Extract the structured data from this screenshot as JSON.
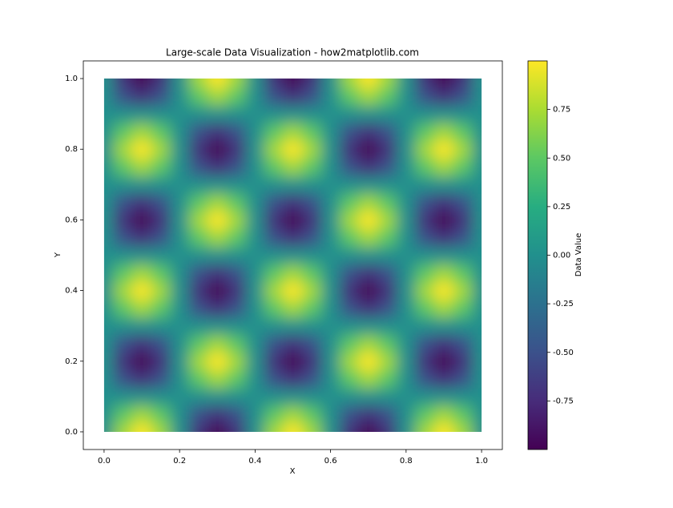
{
  "chart_data": {
    "type": "heatmap",
    "title": "Large-scale Data Visualization - how2matplotlib.com",
    "xlabel": "X",
    "ylabel": "Y",
    "colorbar_label": "Data Value",
    "x": [
      0,
      0.05,
      0.1,
      0.15,
      0.2,
      0.25,
      0.3,
      0.35,
      0.4,
      0.45,
      0.5,
      0.55,
      0.6,
      0.65,
      0.7,
      0.75,
      0.8,
      0.85,
      0.9,
      0.95,
      1
    ],
    "y": [
      0,
      0.05,
      0.1,
      0.15,
      0.2,
      0.25,
      0.3,
      0.35,
      0.4,
      0.45,
      0.5,
      0.55,
      0.6,
      0.65,
      0.7,
      0.75,
      0.8,
      0.85,
      0.9,
      0.95,
      1
    ],
    "z": [
      [
        0,
        0.71,
        1,
        0.71,
        0,
        -0.71,
        -1,
        -0.71,
        0,
        0.71,
        1,
        0.71,
        0,
        -0.71,
        -1,
        -0.71,
        0,
        0.71,
        1,
        0.71,
        0
      ],
      [
        0,
        0.5,
        0.71,
        0.5,
        0,
        -0.5,
        -0.71,
        -0.5,
        0,
        0.5,
        0.71,
        0.5,
        0,
        -0.5,
        -0.71,
        -0.5,
        0,
        0.5,
        0.71,
        0.5,
        0
      ],
      [
        0,
        0,
        0,
        0,
        0,
        0,
        0,
        0,
        0,
        0,
        0,
        0,
        0,
        0,
        0,
        0,
        0,
        0,
        0,
        0,
        0
      ],
      [
        0,
        -0.5,
        -0.71,
        -0.5,
        0,
        0.5,
        0.71,
        0.5,
        0,
        -0.5,
        -0.71,
        -0.5,
        0,
        0.5,
        0.71,
        0.5,
        0,
        -0.5,
        -0.71,
        -0.5,
        0
      ],
      [
        0,
        -0.71,
        -1,
        -0.71,
        0,
        0.71,
        1,
        0.71,
        0,
        -0.71,
        -1,
        -0.71,
        0,
        0.71,
        1,
        0.71,
        0,
        -0.71,
        -1,
        -0.71,
        0
      ],
      [
        0,
        -0.5,
        -0.71,
        -0.5,
        0,
        0.5,
        0.71,
        0.5,
        0,
        -0.5,
        -0.71,
        -0.5,
        0,
        0.5,
        0.71,
        0.5,
        0,
        -0.5,
        -0.71,
        -0.5,
        0
      ],
      [
        0,
        0,
        0,
        0,
        0,
        0,
        0,
        0,
        0,
        0,
        0,
        0,
        0,
        0,
        0,
        0,
        0,
        0,
        0,
        0,
        0
      ],
      [
        0,
        0.5,
        0.71,
        0.5,
        0,
        -0.5,
        -0.71,
        -0.5,
        0,
        0.5,
        0.71,
        0.5,
        0,
        -0.5,
        -0.71,
        -0.5,
        0,
        0.5,
        0.71,
        0.5,
        0
      ],
      [
        0,
        0.71,
        1,
        0.71,
        0,
        -0.71,
        -1,
        -0.71,
        0,
        0.71,
        1,
        0.71,
        0,
        -0.71,
        -1,
        -0.71,
        0,
        0.71,
        1,
        0.71,
        0
      ],
      [
        0,
        0.5,
        0.71,
        0.5,
        0,
        -0.5,
        -0.71,
        -0.5,
        0,
        0.5,
        0.71,
        0.5,
        0,
        -0.5,
        -0.71,
        -0.5,
        0,
        0.5,
        0.71,
        0.5,
        0
      ],
      [
        0,
        0,
        0,
        0,
        0,
        0,
        0,
        0,
        0,
        0,
        0,
        0,
        0,
        0,
        0,
        0,
        0,
        0,
        0,
        0,
        0
      ],
      [
        0,
        -0.5,
        -0.71,
        -0.5,
        0,
        0.5,
        0.71,
        0.5,
        0,
        -0.5,
        -0.71,
        -0.5,
        0,
        0.5,
        0.71,
        0.5,
        0,
        -0.5,
        -0.71,
        -0.5,
        0
      ],
      [
        0,
        -0.71,
        -1,
        -0.71,
        0,
        0.71,
        1,
        0.71,
        0,
        -0.71,
        -1,
        -0.71,
        0,
        0.71,
        1,
        0.71,
        0,
        -0.71,
        -1,
        -0.71,
        0
      ],
      [
        0,
        -0.5,
        -0.71,
        -0.5,
        0,
        0.5,
        0.71,
        0.5,
        0,
        -0.5,
        -0.71,
        -0.5,
        0,
        0.5,
        0.71,
        0.5,
        0,
        -0.5,
        -0.71,
        -0.5,
        0
      ],
      [
        0,
        0,
        0,
        0,
        0,
        0,
        0,
        0,
        0,
        0,
        0,
        0,
        0,
        0,
        0,
        0,
        0,
        0,
        0,
        0,
        0
      ],
      [
        0,
        0.5,
        0.71,
        0.5,
        0,
        -0.5,
        -0.71,
        -0.5,
        0,
        0.5,
        0.71,
        0.5,
        0,
        -0.5,
        -0.71,
        -0.5,
        0,
        0.5,
        0.71,
        0.5,
        0
      ],
      [
        0,
        0.71,
        1,
        0.71,
        0,
        -0.71,
        -1,
        -0.71,
        0,
        0.71,
        1,
        0.71,
        0,
        -0.71,
        -1,
        -0.71,
        0,
        0.71,
        1,
        0.71,
        0
      ],
      [
        0,
        0.5,
        0.71,
        0.5,
        0,
        -0.5,
        -0.71,
        -0.5,
        0,
        0.5,
        0.71,
        0.5,
        0,
        -0.5,
        -0.71,
        -0.5,
        0,
        0.5,
        0.71,
        0.5,
        0
      ],
      [
        0,
        0,
        0,
        0,
        0,
        0,
        0,
        0,
        0,
        0,
        0,
        0,
        0,
        0,
        0,
        0,
        0,
        0,
        0,
        0,
        0
      ],
      [
        0,
        -0.5,
        -0.71,
        -0.5,
        0,
        0.5,
        0.71,
        0.5,
        0,
        -0.5,
        -0.71,
        -0.5,
        0,
        0.5,
        0.71,
        0.5,
        0,
        -0.5,
        -0.71,
        -0.5,
        0
      ],
      [
        0,
        -0.71,
        -1,
        -0.71,
        0,
        0.71,
        1,
        0.71,
        0,
        -0.71,
        -1,
        -0.71,
        0,
        0.71,
        1,
        0.71,
        0,
        -0.71,
        -1,
        -0.71,
        0
      ]
    ],
    "colorscale": [
      "#440154",
      "#472c7a",
      "#3b518b",
      "#2c718e",
      "#21908d",
      "#27ad81",
      "#5cc863",
      "#aadc32",
      "#fde725"
    ],
    "clim": [
      -1,
      1
    ],
    "xlim": [
      -0.055,
      1.055
    ],
    "ylim": [
      -0.05,
      1.05
    ],
    "xticks": [
      {
        "value": 0,
        "label": "0.0"
      },
      0.2,
      0.4,
      0.6,
      0.8,
      {
        "value": 1,
        "label": "1.0"
      }
    ],
    "yticks": [
      {
        "value": 0,
        "label": "0.0"
      },
      0.2,
      0.4,
      0.6,
      0.8,
      {
        "value": 1,
        "label": "1.0"
      }
    ],
    "cticks": [
      {
        "value": -0.75,
        "label": "-0.75"
      },
      {
        "value": -0.5,
        "label": "-0.50"
      },
      {
        "value": -0.25,
        "label": "-0.25"
      },
      {
        "value": 0,
        "label": "0.00"
      },
      {
        "value": 0.25,
        "label": "0.25"
      },
      {
        "value": 0.5,
        "label": "0.50"
      },
      {
        "value": 0.75,
        "label": "0.75"
      }
    ]
  }
}
